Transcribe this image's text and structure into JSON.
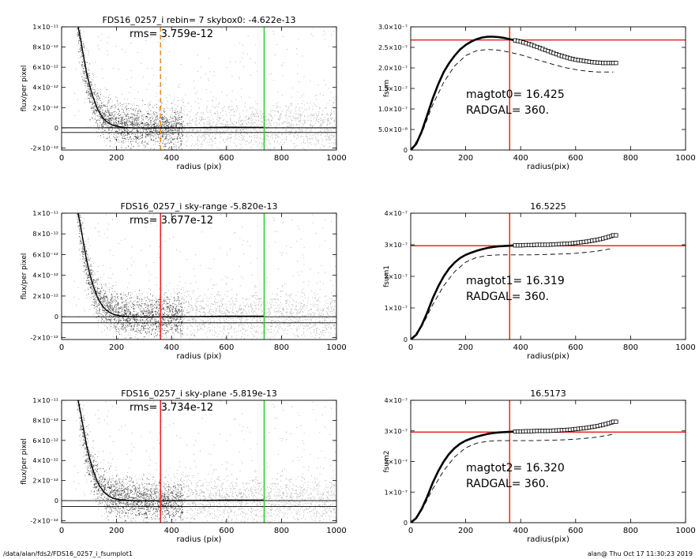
{
  "footer": {
    "path": "/data/alan/fds2/FDS16_0257_i_fsumplot1",
    "stamp": "alan@  Thu Oct 17 11:30:23 2019"
  },
  "colors": {
    "red": "#e8282a",
    "green": "#33cc33",
    "orange": "#e8901e",
    "gray_points": "#a8a8a8",
    "black": "#000000"
  },
  "chart_data": [
    {
      "type": "scatter",
      "title": "FDS16_0257_i rebin= 7    skybox0: -4.622e-13",
      "annotation": "rms= 3.759e-12",
      "xlabel": "radius (pix)",
      "ylabel": "flux/per pixel",
      "xlim": [
        0,
        1000
      ],
      "ylim": [
        -2.2e-12,
        1e-11
      ],
      "xticks": [
        0,
        200,
        400,
        600,
        800,
        1000
      ],
      "xtick_labels": [
        "0",
        "200",
        "400",
        "600",
        "800",
        "1000"
      ],
      "yticks": [
        -2e-12,
        0,
        2e-12,
        4e-12,
        6e-12,
        8e-12,
        1e-11
      ],
      "ytick_labels": [
        "-2×10⁻¹²",
        "0",
        "2×10⁻¹²",
        "4×10⁻¹²",
        "6×10⁻¹²",
        "8×10⁻¹²",
        "1×10⁻¹¹"
      ],
      "hlines": [
        0,
        -4.622e-13
      ],
      "vlines": [
        {
          "x": 360,
          "color": "orange",
          "style": "dashed"
        },
        {
          "x": 737,
          "color": "green",
          "style": "solid"
        }
      ],
      "profile_curve": {
        "x": [
          60,
          70,
          80,
          90,
          100,
          110,
          120,
          130,
          140,
          150,
          160,
          175,
          190,
          210,
          230,
          260,
          300,
          360,
          420,
          500,
          600,
          737
        ],
        "y": [
          1e-11,
          8.6e-12,
          7.1e-12,
          5.6e-12,
          4.4e-12,
          3.4e-12,
          2.6e-12,
          1.9e-12,
          1.4e-12,
          1e-12,
          7e-13,
          4e-13,
          2.2e-13,
          1e-13,
          4e-14,
          0,
          -2e-14,
          -1e-14,
          0,
          1e-14,
          5e-14,
          4e-14
        ]
      }
    },
    {
      "type": "line",
      "title": "",
      "xlabel": "radius(pix)",
      "ylabel": "fsum",
      "xlim": [
        0,
        1000
      ],
      "ylim": [
        0,
        3e-07
      ],
      "xticks": [
        0,
        200,
        400,
        600,
        800,
        1000
      ],
      "xtick_labels": [
        "0",
        "200",
        "400",
        "600",
        "800",
        "1000"
      ],
      "yticks": [
        0,
        5e-08,
        1e-07,
        1.5e-07,
        2e-07,
        2.5e-07,
        3e-07
      ],
      "ytick_labels": [
        "0",
        "5.0×10⁻⁸",
        "1.0×10⁻⁷",
        "1.5×10⁻⁷",
        "2.0×10⁻⁷",
        "2.5×10⁻⁷",
        "3.0×10⁻⁷"
      ],
      "annotations": [
        "magtot0=  16.425",
        "RADGAL=    360."
      ],
      "hline": 2.68e-07,
      "vline": 360,
      "series": [
        {
          "style": "open-squares",
          "x": [
            0,
            20,
            40,
            60,
            80,
            100,
            120,
            140,
            160,
            180,
            200,
            220,
            240,
            260,
            280,
            300,
            320,
            340,
            360,
            380,
            400,
            420,
            440,
            460,
            480,
            500,
            520,
            540,
            560,
            580,
            600,
            620,
            640,
            660,
            680,
            700,
            720,
            737
          ],
          "y": [
            0,
            1.5e-08,
            4.5e-08,
            8.5e-08,
            1.25e-07,
            1.6e-07,
            1.9e-07,
            2.12e-07,
            2.3e-07,
            2.45e-07,
            2.56e-07,
            2.64e-07,
            2.7e-07,
            2.74e-07,
            2.76e-07,
            2.76e-07,
            2.75e-07,
            2.73e-07,
            2.7e-07,
            2.67e-07,
            2.64e-07,
            2.6e-07,
            2.56e-07,
            2.51e-07,
            2.46e-07,
            2.41e-07,
            2.36e-07,
            2.31e-07,
            2.27e-07,
            2.23e-07,
            2.2e-07,
            2.18e-07,
            2.16e-07,
            2.14e-07,
            2.13e-07,
            2.12e-07,
            2.12e-07,
            2.12e-07
          ]
        },
        {
          "style": "dashed",
          "x": [
            0,
            40,
            80,
            120,
            160,
            200,
            240,
            280,
            320,
            360,
            400,
            440,
            480,
            520,
            560,
            600,
            640,
            680,
            720,
            737
          ],
          "y": [
            0,
            4e-08,
            1.1e-07,
            1.65e-07,
            2.05e-07,
            2.3e-07,
            2.42e-07,
            2.45e-07,
            2.43e-07,
            2.38e-07,
            2.32e-07,
            2.24e-07,
            2.16e-07,
            2.08e-07,
            2.01e-07,
            1.96e-07,
            1.92e-07,
            1.9e-07,
            1.9e-07,
            1.9e-07
          ]
        }
      ]
    },
    {
      "type": "scatter",
      "title": "FDS16_0257_i sky-range -5.820e-13",
      "annotation": "rms= 3.677e-12",
      "xlabel": "radius (pix)",
      "ylabel": "flux/per pixel",
      "xlim": [
        0,
        1000
      ],
      "ylim": [
        -2.2e-12,
        1e-11
      ],
      "xticks": [
        0,
        200,
        400,
        600,
        800,
        1000
      ],
      "xtick_labels": [
        "0",
        "200",
        "400",
        "600",
        "800",
        "1000"
      ],
      "yticks": [
        -2e-12,
        0,
        2e-12,
        4e-12,
        6e-12,
        8e-12,
        1e-11
      ],
      "ytick_labels": [
        "-2×10⁻¹²",
        "0",
        "2×10⁻¹²",
        "4×10⁻¹²",
        "6×10⁻¹²",
        "8×10⁻¹²",
        "1×10⁻¹¹"
      ],
      "hlines": [
        0,
        -5.82e-13
      ],
      "vlines": [
        {
          "x": 360,
          "color": "red",
          "style": "solid"
        },
        {
          "x": 737,
          "color": "green",
          "style": "solid"
        }
      ],
      "profile_curve": {
        "x": [
          60,
          70,
          80,
          90,
          100,
          110,
          120,
          130,
          140,
          150,
          160,
          175,
          190,
          210,
          230,
          260,
          300,
          360,
          420,
          500,
          600,
          737
        ],
        "y": [
          1e-11,
          8.6e-12,
          7.1e-12,
          5.6e-12,
          4.4e-12,
          3.4e-12,
          2.6e-12,
          1.9e-12,
          1.4e-12,
          1e-12,
          7e-13,
          4e-13,
          2.2e-13,
          1e-13,
          4e-14,
          0,
          -2e-14,
          -1e-14,
          0,
          2e-14,
          6e-14,
          5e-14
        ]
      }
    },
    {
      "type": "line",
      "title": "16.5225",
      "xlabel": "radius(pix)",
      "ylabel": "fsum1",
      "xlim": [
        0,
        1000
      ],
      "ylim": [
        0,
        4e-07
      ],
      "xticks": [
        0,
        200,
        400,
        600,
        800,
        1000
      ],
      "xtick_labels": [
        "0",
        "200",
        "400",
        "600",
        "800",
        "1000"
      ],
      "yticks": [
        0,
        1e-07,
        2e-07,
        3e-07,
        4e-07
      ],
      "ytick_labels": [
        "0",
        "1×10⁻⁷",
        "2×10⁻⁷",
        "3×10⁻⁷",
        "4×10⁻⁷"
      ],
      "annotations": [
        "magtot1=  16.319",
        "RADGAL=    360."
      ],
      "hline": 2.97e-07,
      "vline": 360,
      "series": [
        {
          "style": "open-squares",
          "x": [
            0,
            20,
            40,
            60,
            80,
            100,
            120,
            140,
            160,
            180,
            200,
            220,
            240,
            260,
            280,
            300,
            320,
            340,
            360,
            380,
            400,
            420,
            440,
            460,
            480,
            500,
            520,
            540,
            560,
            580,
            600,
            620,
            640,
            660,
            680,
            700,
            720,
            737
          ],
          "y": [
            0,
            1.5e-08,
            4.5e-08,
            8.5e-08,
            1.3e-07,
            1.68e-07,
            2e-07,
            2.25e-07,
            2.44e-07,
            2.58e-07,
            2.68e-07,
            2.75e-07,
            2.81e-07,
            2.86e-07,
            2.9e-07,
            2.93e-07,
            2.95e-07,
            2.96e-07,
            2.97e-07,
            2.98e-07,
            2.98e-07,
            2.99e-07,
            2.99e-07,
            3e-07,
            3e-07,
            3e-07,
            3.01e-07,
            3.02e-07,
            3.03e-07,
            3.04e-07,
            3.06e-07,
            3.08e-07,
            3.1e-07,
            3.13e-07,
            3.16e-07,
            3.2e-07,
            3.25e-07,
            3.3e-07
          ]
        },
        {
          "style": "dashed",
          "x": [
            0,
            40,
            80,
            120,
            160,
            200,
            240,
            280,
            320,
            360,
            400,
            440,
            480,
            520,
            560,
            600,
            640,
            680,
            720,
            737
          ],
          "y": [
            0,
            4e-08,
            1.1e-07,
            1.7e-07,
            2.15e-07,
            2.45e-07,
            2.6e-07,
            2.66e-07,
            2.68e-07,
            2.68e-07,
            2.68e-07,
            2.68e-07,
            2.69e-07,
            2.7e-07,
            2.71e-07,
            2.73e-07,
            2.76e-07,
            2.8e-07,
            2.86e-07,
            2.9e-07
          ]
        }
      ]
    },
    {
      "type": "scatter",
      "title": "FDS16_0257_i sky-plane -5.819e-13",
      "annotation": "rms= 3.734e-12",
      "xlabel": "radius (pix)",
      "ylabel": "flux/per pixel",
      "xlim": [
        0,
        1000
      ],
      "ylim": [
        -2.2e-12,
        1e-11
      ],
      "xticks": [
        0,
        200,
        400,
        600,
        800,
        1000
      ],
      "xtick_labels": [
        "0",
        "200",
        "400",
        "600",
        "800",
        "1000"
      ],
      "yticks": [
        -2e-12,
        0,
        2e-12,
        4e-12,
        6e-12,
        8e-12,
        1e-11
      ],
      "ytick_labels": [
        "-2×10⁻¹²",
        "0",
        "2×10⁻¹²",
        "4×10⁻¹²",
        "6×10⁻¹²",
        "8×10⁻¹²",
        "1×10⁻¹¹"
      ],
      "hlines": [
        0,
        -5.819e-13
      ],
      "vlines": [
        {
          "x": 360,
          "color": "red",
          "style": "solid"
        },
        {
          "x": 737,
          "color": "green",
          "style": "solid"
        }
      ],
      "profile_curve": {
        "x": [
          60,
          70,
          80,
          90,
          100,
          110,
          120,
          130,
          140,
          150,
          160,
          175,
          190,
          210,
          230,
          260,
          300,
          360,
          420,
          500,
          600,
          737
        ],
        "y": [
          1e-11,
          8.6e-12,
          7.1e-12,
          5.6e-12,
          4.4e-12,
          3.4e-12,
          2.6e-12,
          1.9e-12,
          1.4e-12,
          1e-12,
          7e-13,
          4e-13,
          2.2e-13,
          1e-13,
          4e-14,
          0,
          -2e-14,
          -1e-14,
          0,
          2e-14,
          6e-14,
          5e-14
        ]
      }
    },
    {
      "type": "line",
      "title": "16.5173",
      "xlabel": "radius(pix)",
      "ylabel": "fsum2",
      "xlim": [
        0,
        1000
      ],
      "ylim": [
        0,
        4e-07
      ],
      "xticks": [
        0,
        200,
        400,
        600,
        800,
        1000
      ],
      "xtick_labels": [
        "0",
        "200",
        "400",
        "600",
        "800",
        "1000"
      ],
      "yticks": [
        0,
        1e-07,
        2e-07,
        3e-07,
        4e-07
      ],
      "ytick_labels": [
        "0",
        "1×10⁻⁷",
        "2×10⁻⁷",
        "3×10⁻⁷",
        "4×10⁻⁷"
      ],
      "annotations": [
        "magtot2=  16.320",
        "RADGAL=    360."
      ],
      "hline": 2.96e-07,
      "vline": 360,
      "series": [
        {
          "style": "open-squares",
          "x": [
            0,
            20,
            40,
            60,
            80,
            100,
            120,
            140,
            160,
            180,
            200,
            220,
            240,
            260,
            280,
            300,
            320,
            340,
            360,
            380,
            400,
            420,
            440,
            460,
            480,
            500,
            520,
            540,
            560,
            580,
            600,
            620,
            640,
            660,
            680,
            700,
            720,
            737
          ],
          "y": [
            0,
            1.5e-08,
            4.5e-08,
            8.5e-08,
            1.3e-07,
            1.68e-07,
            2e-07,
            2.25e-07,
            2.44e-07,
            2.58e-07,
            2.68e-07,
            2.75e-07,
            2.81e-07,
            2.86e-07,
            2.9e-07,
            2.93e-07,
            2.95e-07,
            2.96e-07,
            2.97e-07,
            2.98e-07,
            2.98e-07,
            2.99e-07,
            2.99e-07,
            3e-07,
            3e-07,
            3e-07,
            3.01e-07,
            3.02e-07,
            3.03e-07,
            3.04e-07,
            3.06e-07,
            3.08e-07,
            3.1e-07,
            3.13e-07,
            3.16e-07,
            3.2e-07,
            3.25e-07,
            3.3e-07
          ]
        },
        {
          "style": "dashed",
          "x": [
            0,
            40,
            80,
            120,
            160,
            200,
            240,
            280,
            320,
            360,
            400,
            440,
            480,
            520,
            560,
            600,
            640,
            680,
            720,
            737
          ],
          "y": [
            0,
            4e-08,
            1.1e-07,
            1.7e-07,
            2.15e-07,
            2.45e-07,
            2.6e-07,
            2.66e-07,
            2.68e-07,
            2.68e-07,
            2.68e-07,
            2.68e-07,
            2.69e-07,
            2.7e-07,
            2.71e-07,
            2.73e-07,
            2.76e-07,
            2.8e-07,
            2.86e-07,
            2.9e-07
          ]
        }
      ]
    }
  ]
}
